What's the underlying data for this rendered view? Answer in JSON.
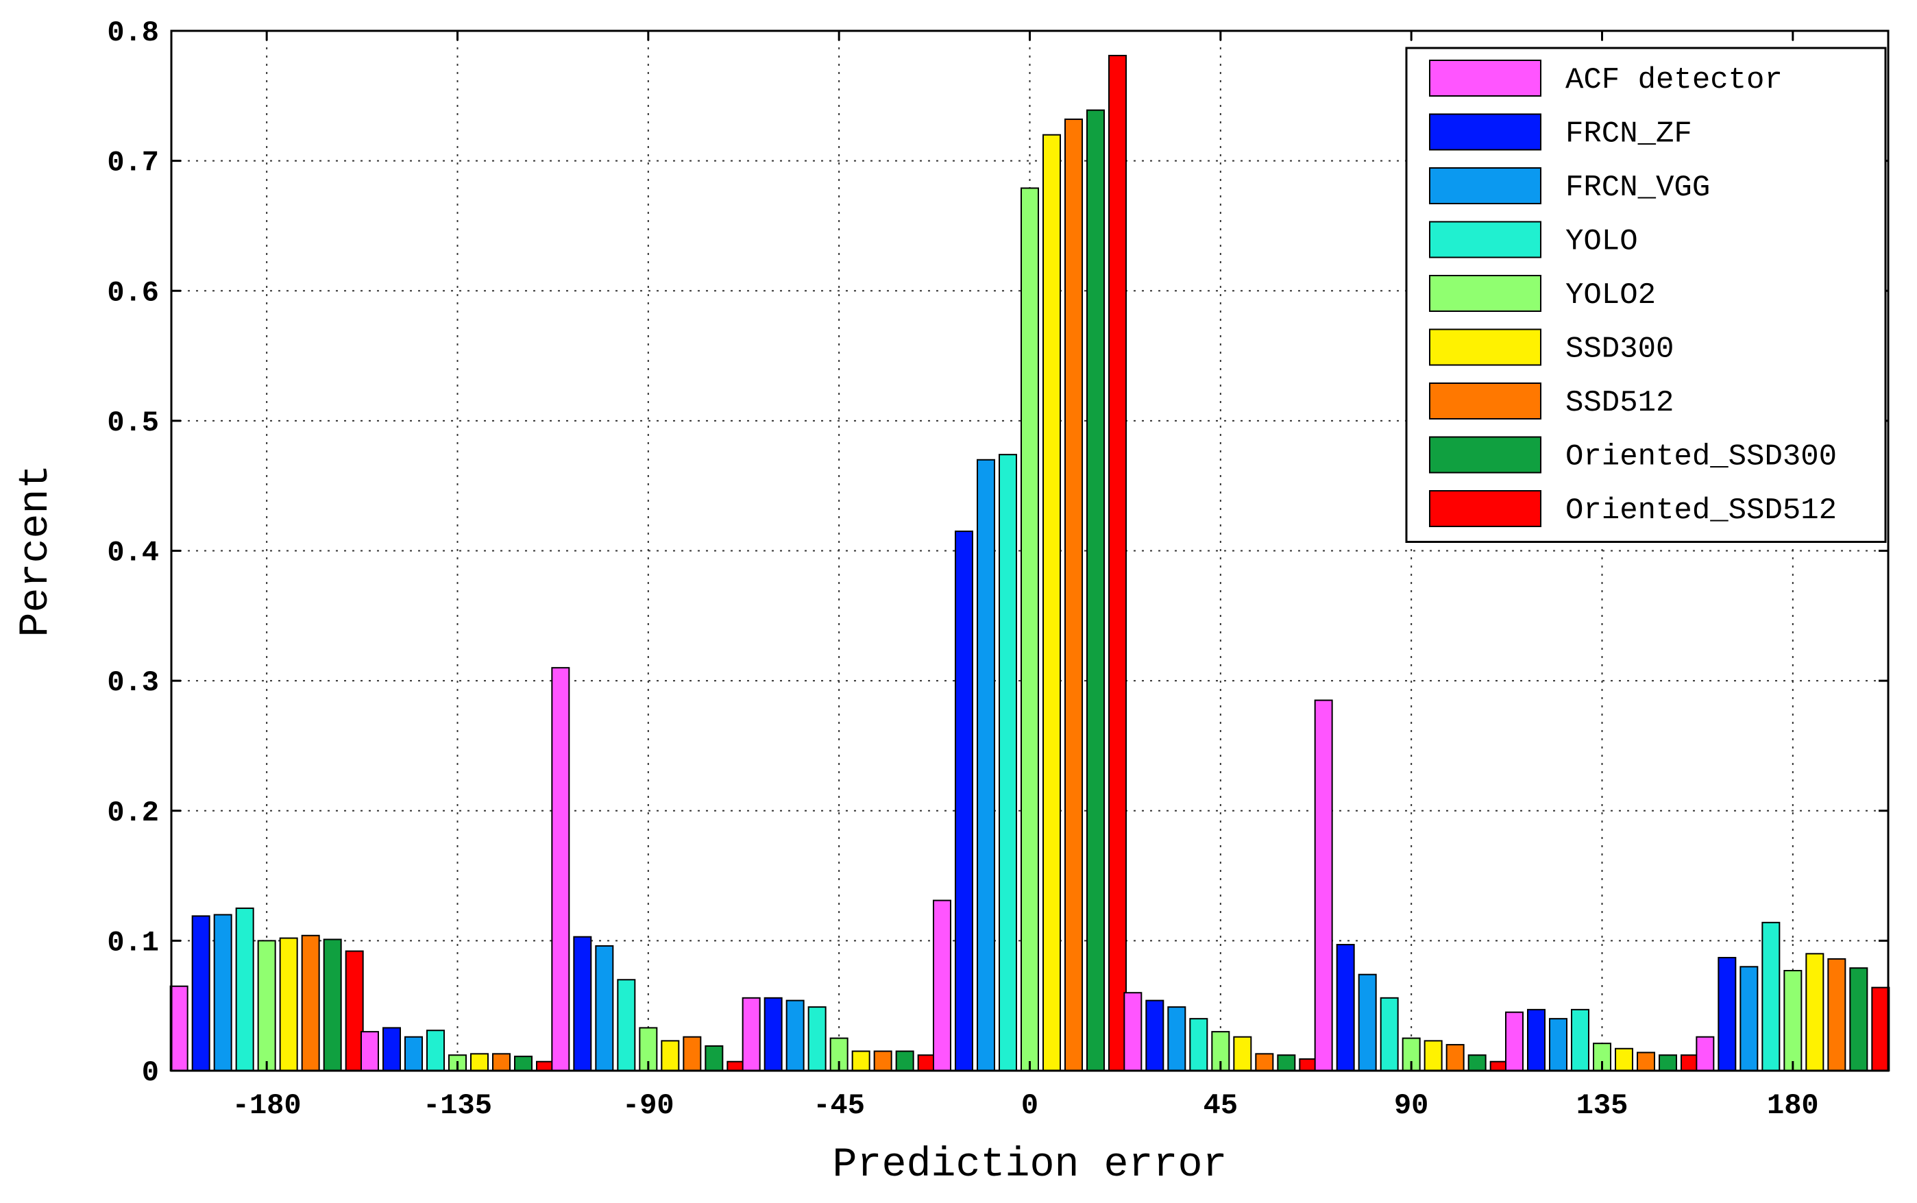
{
  "chart_data": {
    "type": "bar",
    "title": "",
    "xlabel": "Prediction error",
    "ylabel": "Percent",
    "categories": [
      "-180",
      "-135",
      "-90",
      "-45",
      "0",
      "45",
      "90",
      "135",
      "180"
    ],
    "ylim": [
      0,
      0.8
    ],
    "yticks": [
      "0",
      "0.1",
      "0.2",
      "0.3",
      "0.4",
      "0.5",
      "0.6",
      "0.7",
      "0.8"
    ],
    "grid": true,
    "legend_position": "top-right",
    "series": [
      {
        "name": "ACF detector",
        "color": "#ff55ff",
        "values": [
          0.065,
          0.03,
          0.31,
          0.056,
          0.131,
          0.06,
          0.285,
          0.045,
          0.026
        ]
      },
      {
        "name": "FRCN_ZF",
        "color": "#0018ff",
        "values": [
          0.119,
          0.033,
          0.103,
          0.056,
          0.415,
          0.054,
          0.097,
          0.047,
          0.087
        ]
      },
      {
        "name": "FRCN_VGG",
        "color": "#0b99f0",
        "values": [
          0.12,
          0.026,
          0.096,
          0.054,
          0.47,
          0.049,
          0.074,
          0.04,
          0.08
        ]
      },
      {
        "name": "YOLO",
        "color": "#20f0d0",
        "values": [
          0.125,
          0.031,
          0.07,
          0.049,
          0.474,
          0.04,
          0.056,
          0.047,
          0.114
        ]
      },
      {
        "name": "YOLO2",
        "color": "#90ff70",
        "values": [
          0.1,
          0.012,
          0.033,
          0.025,
          0.679,
          0.03,
          0.025,
          0.021,
          0.077
        ]
      },
      {
        "name": "SSD300",
        "color": "#fff200",
        "values": [
          0.102,
          0.013,
          0.023,
          0.015,
          0.72,
          0.026,
          0.023,
          0.017,
          0.09
        ]
      },
      {
        "name": "SSD512",
        "color": "#ff7800",
        "values": [
          0.104,
          0.013,
          0.026,
          0.015,
          0.732,
          0.013,
          0.02,
          0.014,
          0.086
        ]
      },
      {
        "name": "Oriented_SSD300",
        "color": "#10a040",
        "values": [
          0.101,
          0.011,
          0.019,
          0.015,
          0.739,
          0.012,
          0.012,
          0.012,
          0.079
        ]
      },
      {
        "name": "Oriented_SSD512",
        "color": "#ff0000",
        "values": [
          0.092,
          0.007,
          0.007,
          0.012,
          0.781,
          0.009,
          0.007,
          0.012,
          0.064
        ]
      }
    ]
  }
}
